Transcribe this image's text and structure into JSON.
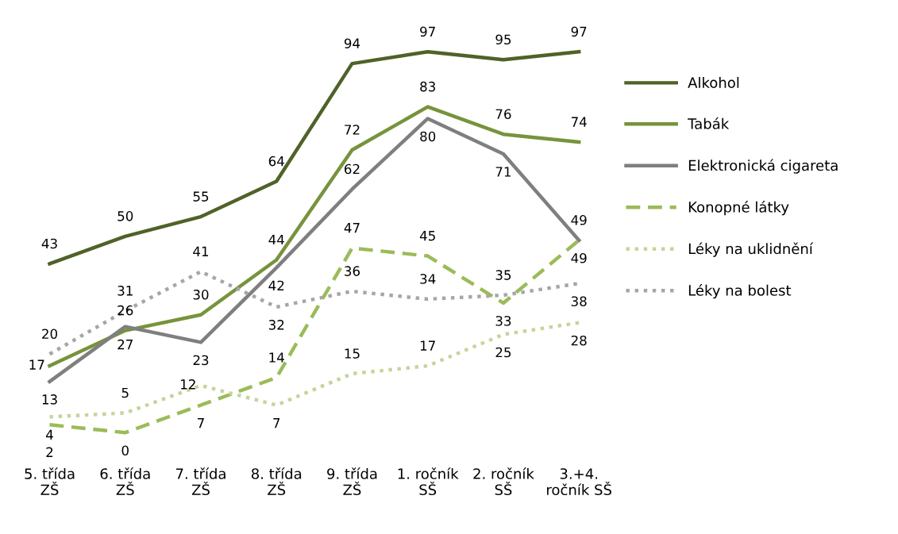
{
  "chart_data": {
    "type": "line",
    "categories": [
      "5. třída\nZŠ",
      "6. třída\nZŠ",
      "7. třída\nZŠ",
      "8. třída\nZŠ",
      "9. třída\nZŠ",
      "1. ročník\nSŠ",
      "2. ročník\nSŠ",
      "3.+4.\nročník SŠ"
    ],
    "series": [
      {
        "name": "Alkohol",
        "color": "#4f6228",
        "line_style": "solid",
        "values": [
          43,
          50,
          55,
          64,
          94,
          97,
          95,
          97
        ]
      },
      {
        "name": "Tabák",
        "color": "#77933c",
        "line_style": "solid",
        "values": [
          17,
          26,
          30,
          44,
          72,
          83,
          76,
          74
        ]
      },
      {
        "name": "Elektronická cigareta",
        "color": "#7f7f7f",
        "line_style": "solid",
        "values": [
          13,
          27,
          23,
          42,
          62,
          80,
          71,
          49
        ]
      },
      {
        "name": "Konopné látky",
        "color": "#9bbb59",
        "line_style": "dashed",
        "values": [
          2,
          0,
          7,
          14,
          47,
          45,
          33,
          49
        ]
      },
      {
        "name": "Léky na uklidnění",
        "color": "#c3d69b",
        "line_style": "dotted",
        "values": [
          4,
          5,
          12,
          7,
          15,
          17,
          25,
          28
        ]
      },
      {
        "name": "Léky na bolest",
        "color": "#a6a6a6",
        "line_style": "dotted",
        "values": [
          20,
          31,
          41,
          32,
          36,
          34,
          35,
          38
        ]
      }
    ],
    "data_labels": true,
    "legend": "right",
    "grid": false,
    "marker": "none"
  }
}
